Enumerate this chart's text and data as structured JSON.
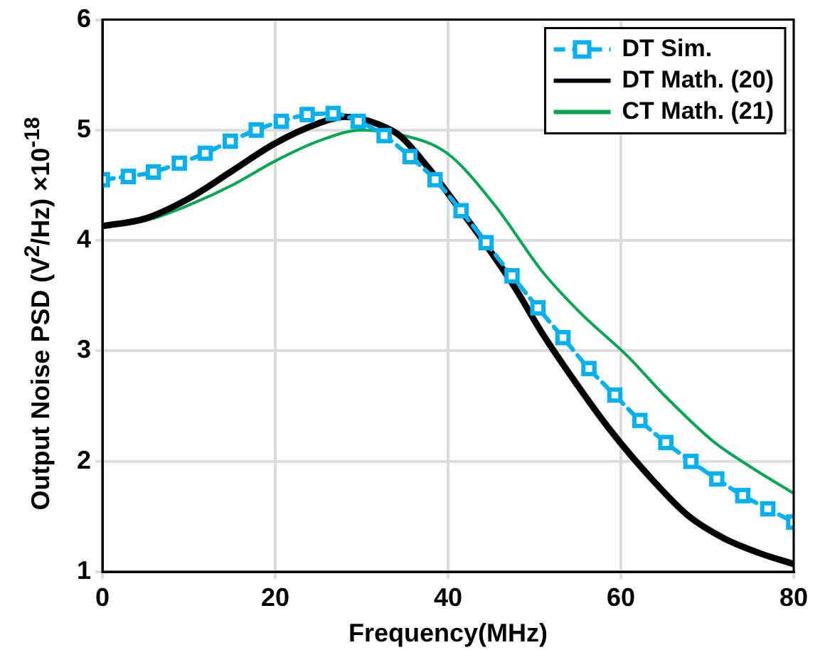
{
  "chart_data": {
    "type": "line",
    "xlabel": "Frequency(MHz)",
    "ylabel": "Output Noise PSD (V$^{2}$/Hz) ×10$^{-18}$",
    "xlim": [
      0,
      80
    ],
    "xticks": [
      0,
      20,
      40,
      60,
      80
    ],
    "ylim": [
      1,
      6
    ],
    "yticks": [
      1,
      2,
      3,
      4,
      5,
      6
    ],
    "grid": true,
    "legend": "top right",
    "series": [
      {
        "name": "DT Sim.",
        "color": "#00b0f0",
        "marker": "square",
        "line_style": "dashed",
        "x": [
          0,
          3.0,
          5.9,
          8.9,
          11.9,
          14.8,
          17.8,
          20.7,
          23.7,
          26.7,
          29.6,
          32.6,
          35.6,
          38.5,
          41.5,
          44.4,
          47.4,
          50.4,
          53.3,
          56.3,
          59.3,
          62.2,
          65.2,
          68.1,
          71.1,
          74.1,
          77.0,
          80.0
        ],
        "values": [
          4.55,
          4.58,
          4.62,
          4.7,
          4.79,
          4.9,
          5.0,
          5.08,
          5.14,
          5.15,
          5.08,
          4.95,
          4.76,
          4.55,
          4.27,
          3.98,
          3.68,
          3.39,
          3.12,
          2.84,
          2.6,
          2.37,
          2.17,
          2.0,
          1.84,
          1.69,
          1.57,
          1.45
        ]
      },
      {
        "name": "DT Math. (20)",
        "color": "#000000",
        "marker": "none",
        "line_style": "solid",
        "x": [
          0,
          5,
          10,
          15,
          20,
          25,
          28,
          30,
          32,
          34.4,
          37.7,
          41,
          44.3,
          47.6,
          50.9,
          54.7,
          58.6,
          63.8,
          67.9,
          72,
          76,
          80
        ],
        "values": [
          4.13,
          4.2,
          4.38,
          4.63,
          4.88,
          5.06,
          5.12,
          5.1,
          5.05,
          4.95,
          4.66,
          4.32,
          3.97,
          3.59,
          3.16,
          2.72,
          2.3,
          1.82,
          1.5,
          1.3,
          1.17,
          1.07
        ]
      },
      {
        "name": "CT Math. (21)",
        "color": "#00a651",
        "marker": "none",
        "line_style": "solid",
        "x": [
          0,
          5,
          10,
          15,
          20,
          25,
          30,
          34.4,
          39.9,
          45.4,
          50.9,
          55.5,
          60.8,
          65,
          70.7,
          75,
          80
        ],
        "values": [
          4.13,
          4.18,
          4.32,
          4.5,
          4.72,
          4.9,
          5.0,
          4.96,
          4.79,
          4.32,
          3.72,
          3.33,
          2.95,
          2.6,
          2.18,
          1.95,
          1.71
        ]
      }
    ]
  }
}
